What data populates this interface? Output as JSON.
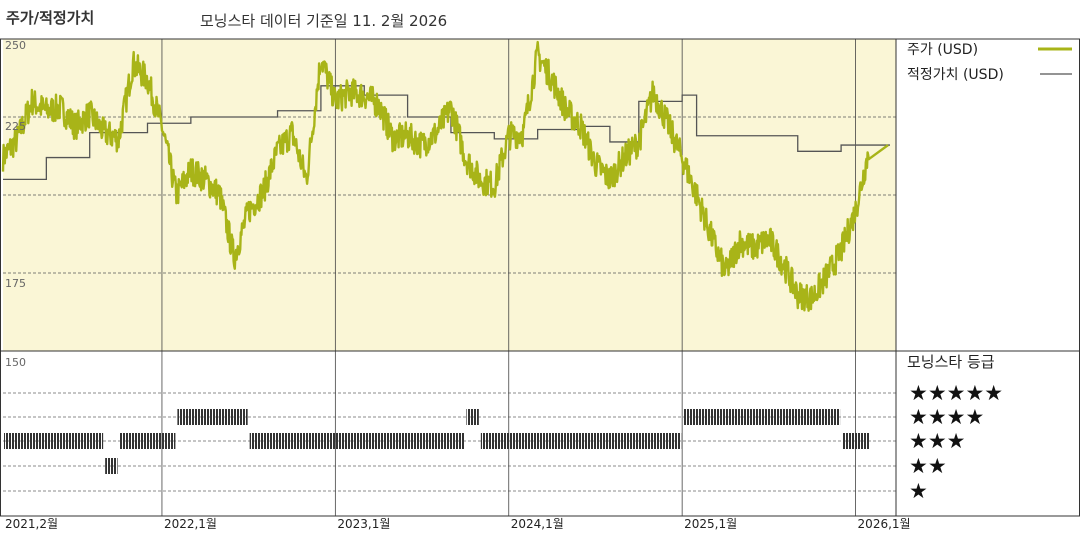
{
  "header": {
    "title": "주가/적정가치",
    "subtitle": "모닝스타 데이터 기준일 11. 2월 2026"
  },
  "legend": {
    "price_label": "주가 (USD)",
    "fair_value_label": "적정가치 (USD)",
    "rating_title": "모닝스타 등급"
  },
  "colors": {
    "price_line": "#a8b418",
    "fair_value_line": "#555555",
    "plot_background": "#faf6d6",
    "rating_bars": "#333333"
  },
  "chart_data": {
    "type": "line",
    "x_ticks": [
      "2021,2월",
      "2022,1월",
      "2023,1월",
      "2024,1월",
      "2025,1월",
      "2026,1월"
    ],
    "y_ticks": [
      "250",
      "225",
      "175",
      "150"
    ],
    "ylim": [
      150,
      250
    ],
    "grid": true,
    "legend_position": "right",
    "series": [
      {
        "name": "주가 (USD)",
        "points": [
          [
            "2021-02",
            212
          ],
          [
            "2021-03",
            218
          ],
          [
            "2021-04",
            230
          ],
          [
            "2021-05",
            227
          ],
          [
            "2021-06",
            228
          ],
          [
            "2021-07",
            222
          ],
          [
            "2021-08",
            226
          ],
          [
            "2021-09",
            220
          ],
          [
            "2021-10",
            218
          ],
          [
            "2021-11",
            242
          ],
          [
            "2021-12",
            237
          ],
          [
            "2022-01",
            222
          ],
          [
            "2022-02",
            200
          ],
          [
            "2022-03",
            208
          ],
          [
            "2022-04",
            205
          ],
          [
            "2022-05",
            200
          ],
          [
            "2022-06",
            180
          ],
          [
            "2022-07",
            195
          ],
          [
            "2022-08",
            201
          ],
          [
            "2022-09",
            214
          ],
          [
            "2022-10",
            220
          ],
          [
            "2022-11",
            205
          ],
          [
            "2022-12",
            244
          ],
          [
            "2023-01",
            230
          ],
          [
            "2023-02",
            233
          ],
          [
            "2023-03",
            232
          ],
          [
            "2023-04",
            229
          ],
          [
            "2023-05",
            218
          ],
          [
            "2023-06",
            219
          ],
          [
            "2023-07",
            216
          ],
          [
            "2023-08",
            220
          ],
          [
            "2023-09",
            228
          ],
          [
            "2023-10",
            212
          ],
          [
            "2023-11",
            205
          ],
          [
            "2023-12",
            203
          ],
          [
            "2024-01",
            219
          ],
          [
            "2024-02",
            220
          ],
          [
            "2024-03",
            245
          ],
          [
            "2024-04",
            237
          ],
          [
            "2024-05",
            227
          ],
          [
            "2024-06",
            222
          ],
          [
            "2024-07",
            210
          ],
          [
            "2024-08",
            205
          ],
          [
            "2024-09",
            212
          ],
          [
            "2024-10",
            217
          ],
          [
            "2024-11",
            233
          ],
          [
            "2024-12",
            223
          ],
          [
            "2025-01",
            212
          ],
          [
            "2025-02",
            200
          ],
          [
            "2025-03",
            187
          ],
          [
            "2025-04",
            175
          ],
          [
            "2025-05",
            185
          ],
          [
            "2025-06",
            183
          ],
          [
            "2025-07",
            186
          ],
          [
            "2025-08",
            178
          ],
          [
            "2025-09",
            168
          ],
          [
            "2025-10",
            167
          ],
          [
            "2025-11",
            174
          ],
          [
            "2025-12",
            182
          ],
          [
            "2026-01",
            195
          ],
          [
            "2026-02",
            216
          ]
        ]
      },
      {
        "name": "적정가치 (USD)",
        "points": [
          [
            "2021-02",
            205
          ],
          [
            "2021-05",
            212
          ],
          [
            "2021-08",
            220
          ],
          [
            "2021-12",
            223
          ],
          [
            "2022-03",
            225
          ],
          [
            "2022-09",
            227
          ],
          [
            "2022-12",
            235
          ],
          [
            "2023-03",
            232
          ],
          [
            "2023-06",
            225
          ],
          [
            "2023-09",
            220
          ],
          [
            "2023-12",
            218
          ],
          [
            "2024-03",
            221
          ],
          [
            "2024-06",
            222
          ],
          [
            "2024-08",
            217
          ],
          [
            "2024-10",
            230
          ],
          [
            "2025-01",
            232
          ],
          [
            "2025-02",
            219
          ],
          [
            "2025-06",
            219
          ],
          [
            "2025-09",
            214
          ],
          [
            "2025-12",
            216
          ],
          [
            "2026-02",
            216
          ]
        ]
      }
    ],
    "ratings": {
      "levels": [
        "★★★★★",
        "★★★★",
        "★★★",
        "★★",
        "★"
      ],
      "segments": [
        {
          "start": "2021-02",
          "end": "2021-09",
          "stars": 3
        },
        {
          "start": "2021-09",
          "end": "2021-10",
          "stars": 2
        },
        {
          "start": "2021-10",
          "end": "2022-02",
          "stars": 3
        },
        {
          "start": "2022-02",
          "end": "2022-07",
          "stars": 4
        },
        {
          "start": "2022-07",
          "end": "2023-10",
          "stars": 3
        },
        {
          "start": "2023-10",
          "end": "2023-11",
          "stars": 4
        },
        {
          "start": "2023-11",
          "end": "2025-01",
          "stars": 3
        },
        {
          "start": "2025-01",
          "end": "2025-12",
          "stars": 4
        },
        {
          "start": "2025-12",
          "end": "2026-02",
          "stars": 3
        }
      ]
    }
  }
}
